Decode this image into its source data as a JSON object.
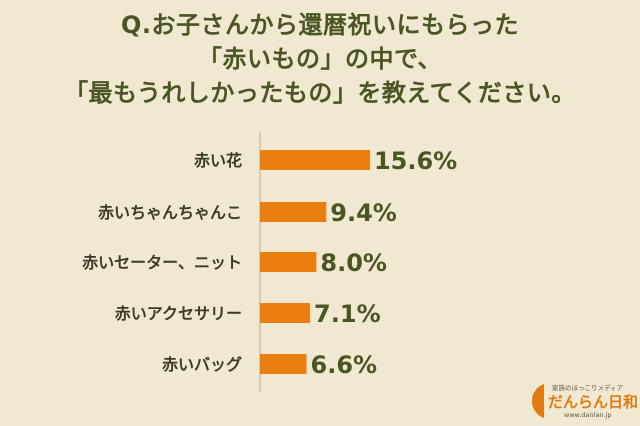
{
  "chart_data": {
    "type": "bar",
    "orientation": "horizontal",
    "title_lines": [
      "Q.お子さんから還暦祝いにもらった",
      "「赤いもの」の中で、",
      "「最もうれしかったもの」を教えてください。"
    ],
    "categories": [
      "赤い花",
      "赤いちゃんちゃんこ",
      "赤いセーター、ニット",
      "赤いアクセサリー",
      "赤いバッグ"
    ],
    "values": [
      15.6,
      9.4,
      8.0,
      7.1,
      6.6
    ],
    "value_labels": [
      "15.6%",
      "9.4%",
      "8.0%",
      "7.1%",
      "6.6%"
    ],
    "bar_color": "#ea7f10",
    "text_color": "#4a5524",
    "background_color": "#f1e8d1",
    "grid": false,
    "legend": "none"
  },
  "logo": {
    "tagline": "家族のほっこりメディア",
    "name": "だんらん日和",
    "url": "www.danlan.jp",
    "color": "#e07b12"
  }
}
